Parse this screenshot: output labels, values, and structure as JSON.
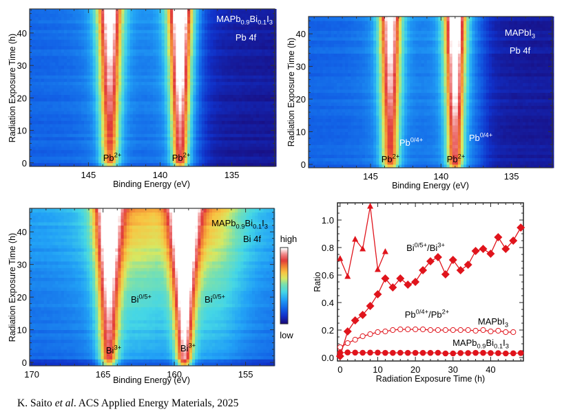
{
  "caption": [
    {
      "t": "K. Saito "
    },
    {
      "t": "et al",
      "italic": true
    },
    {
      "t": ". ACS Applied  Energy  Materials,  2025"
    }
  ],
  "colors": {
    "marker": "#e0141c",
    "frame": "#333333"
  },
  "chart_data": [
    {
      "type": "heatmap",
      "xlabel": "Binding Energy (eV)",
      "ylabel": "Radiation Exposure Time (h)",
      "xlim": [
        149.1,
        132.0
      ],
      "ylim": [
        -1.1,
        47.4
      ],
      "xticks": [
        145,
        140,
        135
      ],
      "yticks": [
        0,
        10,
        20,
        30,
        40
      ],
      "colorscale": "jet-to-white",
      "sample_label": [
        {
          "t": "MAPb"
        },
        {
          "t": "0.9",
          "sub": true
        },
        {
          "t": "Bi"
        },
        {
          "t": "0.1",
          "sub": true
        },
        {
          "t": "I"
        },
        {
          "t": "3",
          "sub": true
        }
      ],
      "core_level": "Pb 4f",
      "peak_labels": [
        [
          {
            "t": "Pb"
          },
          {
            "t": "2+",
            "sup": true
          }
        ],
        [
          {
            "t": "Pb"
          },
          {
            "t": "2+",
            "sup": true
          }
        ]
      ],
      "peaks": [
        {
          "center_eV": 143.5,
          "intensity_start": 0.58,
          "intensity_end": 0.9,
          "width_start_eV": 0.45,
          "width_end_eV": 0.62
        },
        {
          "center_eV": 138.6,
          "intensity_start": 0.66,
          "intensity_end": 1.0,
          "width_start_eV": 0.42,
          "width_end_eV": 0.6
        }
      ]
    },
    {
      "type": "heatmap",
      "xlabel": "Binding Energy (eV)",
      "ylabel": "Radiation Exposure Time (h)",
      "xlim": [
        149.4,
        132.1
      ],
      "ylim": [
        -1.05,
        45.3
      ],
      "xticks": [
        145,
        140,
        135
      ],
      "yticks": [
        0,
        10,
        20,
        30,
        40
      ],
      "colorscale": "jet-to-white",
      "sample_label": [
        {
          "t": "MAPbI"
        },
        {
          "t": "3",
          "sub": true
        }
      ],
      "core_level": "Pb 4f",
      "peak_labels": [
        [
          {
            "t": "Pb"
          },
          {
            "t": "2+",
            "sup": true
          }
        ],
        [
          {
            "t": "Pb"
          },
          {
            "t": "2+",
            "sup": true
          }
        ],
        [
          {
            "t": "Pb"
          },
          {
            "t": "0/4+",
            "sup": true
          }
        ],
        [
          {
            "t": "Pb"
          },
          {
            "t": "0/4+",
            "sup": true
          }
        ]
      ],
      "peaks": [
        {
          "center_eV": 143.6,
          "intensity_start": 0.6,
          "intensity_end": 0.9,
          "width_start_eV": 0.45,
          "width_end_eV": 0.55
        },
        {
          "center_eV": 139.0,
          "intensity_start": 0.66,
          "intensity_end": 1.0,
          "width_start_eV": 0.42,
          "width_end_eV": 0.55
        }
      ]
    },
    {
      "type": "heatmap",
      "xlabel": "Binding Energy (eV)",
      "ylabel": "Radiation Exposure Time (h)",
      "xlim": [
        170.15,
        153.0
      ],
      "ylim": [
        -1.05,
        47.2
      ],
      "xticks": [
        170,
        165,
        160,
        155
      ],
      "yticks": [
        0,
        10,
        20,
        30,
        40
      ],
      "colorscale": "jet-to-white",
      "colorbar_labels": {
        "high": "high",
        "low": "low"
      },
      "sample_label": [
        {
          "t": "MAPb"
        },
        {
          "t": "0.9",
          "sub": true
        },
        {
          "t": "Bi"
        },
        {
          "t": "0.1",
          "sub": true
        },
        {
          "t": "I"
        },
        {
          "t": "3",
          "sub": true
        }
      ],
      "core_level": "Bi 4f",
      "peak_labels": [
        [
          {
            "t": "Bi"
          },
          {
            "t": "3+",
            "sup": true
          }
        ],
        [
          {
            "t": "Bi"
          },
          {
            "t": "3+",
            "sup": true
          }
        ],
        [
          {
            "t": "Bi"
          },
          {
            "t": "0/5+",
            "sup": true
          }
        ],
        [
          {
            "t": "Bi"
          },
          {
            "t": "0/5+",
            "sup": true
          }
        ]
      ],
      "peaks": [
        {
          "center_eV": 164.6,
          "intensity_start": 0.6,
          "intensity_end": 0.86,
          "width_start_eV": 0.45,
          "width_end_eV": 0.7
        },
        {
          "center_eV": 159.3,
          "intensity_start": 0.68,
          "intensity_end": 1.0,
          "width_start_eV": 0.4,
          "width_end_eV": 0.75
        },
        {
          "center_eV": 162.3,
          "intensity_start": 0.08,
          "intensity_end": 0.3,
          "width_start_eV": 1.5,
          "width_end_eV": 1.5
        },
        {
          "center_eV": 157.0,
          "intensity_start": 0.08,
          "intensity_end": 0.3,
          "width_start_eV": 1.5,
          "width_end_eV": 1.5
        }
      ]
    },
    {
      "type": "line",
      "xlabel": "Radiation Exposure Time (h)",
      "ylabel": "Ratio",
      "xlim": [
        -0.7,
        48.7
      ],
      "ylim": [
        -0.025,
        1.125
      ],
      "xticks": [
        0,
        10,
        20,
        30,
        40
      ],
      "yticks": [
        "0.0",
        "0.2",
        "0.4",
        "0.6",
        "0.8",
        "1.0"
      ],
      "annotations": [
        [
          {
            "t": "Bi"
          },
          {
            "t": "0/5+",
            "sup": true
          },
          {
            "t": "/Bi"
          },
          {
            "t": "3+",
            "sup": true
          }
        ],
        [
          {
            "t": "Pb"
          },
          {
            "t": "0/4+",
            "sup": true
          },
          {
            "t": "/Pb"
          },
          {
            "t": "2+",
            "sup": true
          }
        ],
        [
          {
            "t": "MAPbI"
          },
          {
            "t": "3",
            "sub": true
          }
        ],
        [
          {
            "t": "MAPb"
          },
          {
            "t": "0.9",
            "sub": true
          },
          {
            "t": "Bi"
          },
          {
            "t": "0.1",
            "sub": true
          },
          {
            "t": "I"
          },
          {
            "t": "3",
            "sub": true
          }
        ]
      ],
      "series": [
        {
          "marker": "triangle",
          "x": [
            0,
            2,
            4,
            6,
            8,
            10,
            12
          ],
          "y": [
            0.72,
            0.59,
            0.86,
            0.79,
            1.1,
            0.64,
            0.77
          ]
        },
        {
          "marker": "diamond",
          "x": [
            0,
            2,
            4,
            6,
            8,
            10,
            12,
            14,
            16,
            18,
            20,
            22,
            24,
            26,
            28,
            30,
            32,
            34,
            36,
            38,
            40,
            42,
            44,
            46,
            48
          ],
          "y": [
            0.01,
            0.19,
            0.27,
            0.31,
            0.375,
            0.46,
            0.575,
            0.51,
            0.575,
            0.53,
            0.55,
            0.635,
            0.7,
            0.73,
            0.605,
            0.71,
            0.635,
            0.675,
            0.775,
            0.79,
            0.755,
            0.875,
            0.79,
            0.85,
            0.945
          ]
        },
        {
          "marker": "open-circle",
          "x": [
            0,
            2,
            4,
            6,
            8,
            10,
            12,
            14,
            16,
            18,
            20,
            22,
            24,
            26,
            28,
            30,
            32,
            34,
            36,
            38,
            40,
            42,
            44,
            46
          ],
          "y": [
            0.075,
            0.105,
            0.13,
            0.155,
            0.17,
            0.185,
            0.19,
            0.2,
            0.205,
            0.205,
            0.205,
            0.205,
            0.2,
            0.2,
            0.2,
            0.2,
            0.2,
            0.2,
            0.195,
            0.2,
            0.19,
            0.195,
            0.185,
            0.185
          ]
        },
        {
          "marker": "filled-circle",
          "x": [
            0,
            2,
            4,
            6,
            8,
            10,
            12,
            14,
            16,
            18,
            20,
            22,
            24,
            26,
            28,
            30,
            32,
            34,
            36,
            38,
            40,
            42,
            44,
            46,
            48
          ],
          "y": [
            0.035,
            0.037,
            0.036,
            0.035,
            0.036,
            0.036,
            0.034,
            0.034,
            0.035,
            0.034,
            0.034,
            0.034,
            0.034,
            0.035,
            0.03,
            0.03,
            0.033,
            0.033,
            0.034,
            0.034,
            0.033,
            0.032,
            0.03,
            0.031,
            0.033
          ]
        }
      ]
    }
  ]
}
